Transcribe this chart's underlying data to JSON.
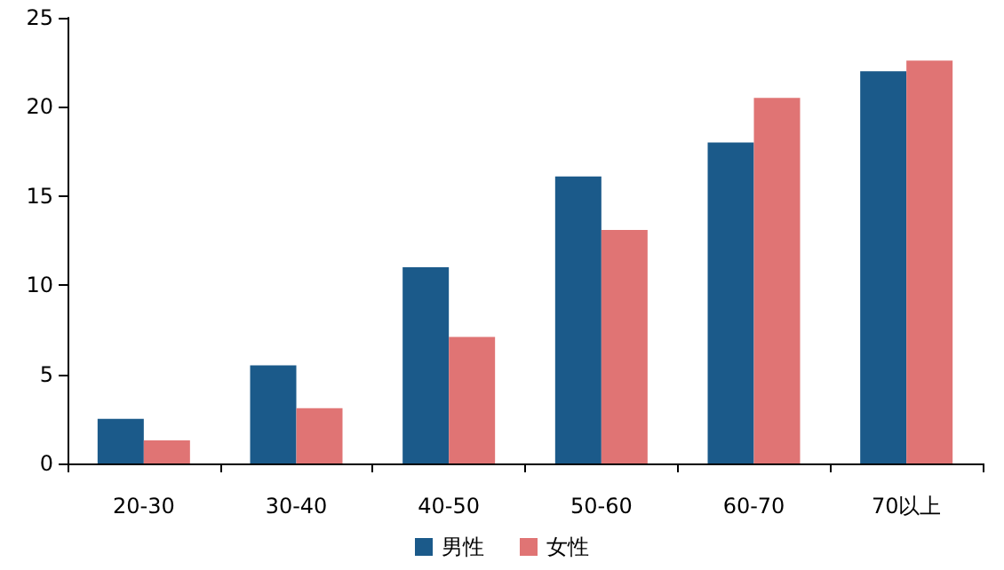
{
  "chart_data": {
    "type": "bar",
    "categories": [
      "20-30",
      "30-40",
      "40-50",
      "50-60",
      "60-70",
      "70以上"
    ],
    "series": [
      {
        "name": "男性",
        "color": "#1b5a8a",
        "values": [
          2.5,
          5.5,
          11,
          16.1,
          18,
          22
        ]
      },
      {
        "name": "女性",
        "color": "#e07474",
        "values": [
          1.3,
          3.1,
          7.1,
          13.1,
          20.5,
          22.6
        ]
      }
    ],
    "ylim": [
      0,
      25
    ],
    "yticks": [
      0,
      5,
      10,
      15,
      20,
      25
    ],
    "grid": false,
    "legend": "bottom"
  }
}
